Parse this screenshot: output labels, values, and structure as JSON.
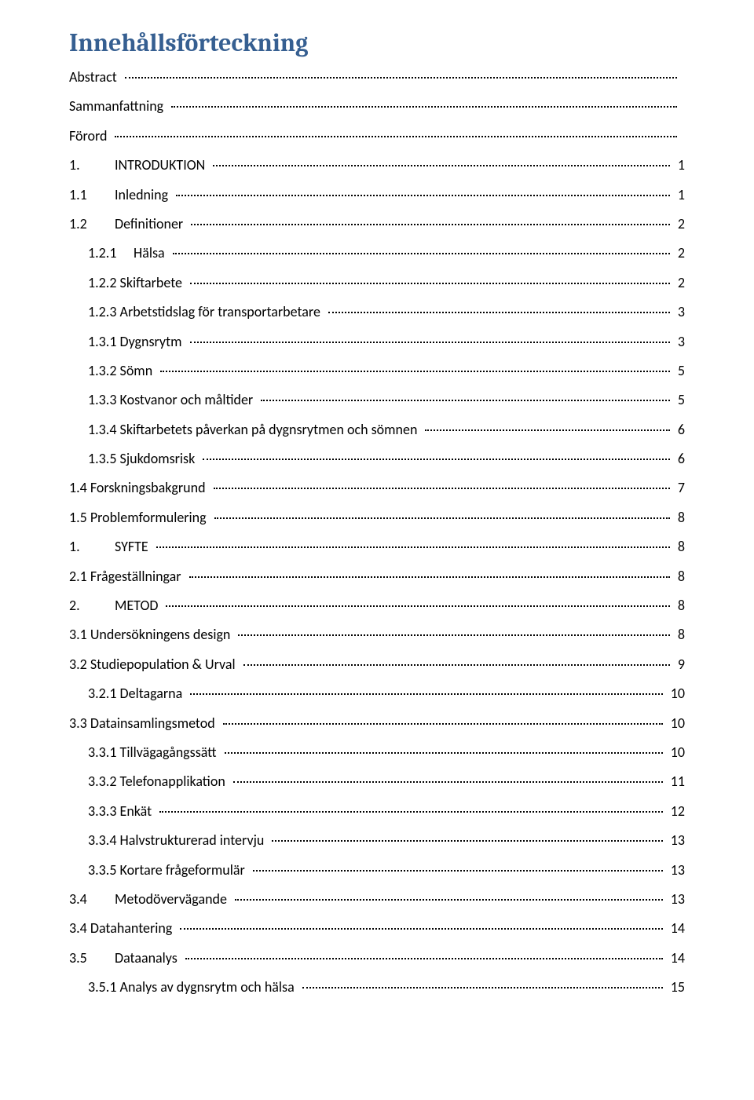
{
  "title": "Innehållsförteckning",
  "title_color": "#365f91",
  "text_color": "#000000",
  "background_color": "#ffffff",
  "font_body": "Calibri",
  "font_heading": "Cambria",
  "title_fontsize_pt": 24,
  "body_fontsize_pt": 13,
  "dot_leader_color": "#000000",
  "entries": [
    {
      "indent": 0,
      "num": "",
      "title": "Abstract",
      "page": ""
    },
    {
      "indent": 0,
      "num": "",
      "title": "Sammanfattning",
      "page": ""
    },
    {
      "indent": 0,
      "num": "",
      "title": "Förord",
      "page": ""
    },
    {
      "indent": 0,
      "num": "1.",
      "title": "INTRODUKTION",
      "wide": true,
      "page": "1"
    },
    {
      "indent": 1,
      "num": "1.1",
      "title": "Inledning",
      "wide": true,
      "page": "1"
    },
    {
      "indent": 1,
      "num": "1.2",
      "title": "Definitioner",
      "wide": true,
      "page": "2"
    },
    {
      "indent": 2,
      "num": "1.2.1",
      "title": "Hälsa",
      "wide": true,
      "page": "2"
    },
    {
      "indent": 2,
      "num": "1.2.2",
      "title": "Skiftarbete",
      "page": "2"
    },
    {
      "indent": 2,
      "num": "1.2.3",
      "title": "Arbetstidslag för transportarbetare",
      "page": "3"
    },
    {
      "indent": 2,
      "num": "1.3.1",
      "title": "Dygnsrytm",
      "page": "3"
    },
    {
      "indent": 2,
      "num": "1.3.2",
      "title": "Sömn",
      "page": "5"
    },
    {
      "indent": 2,
      "num": "1.3.3",
      "title": "Kostvanor och måltider",
      "page": "5"
    },
    {
      "indent": 2,
      "num": "1.3.4",
      "title": "Skiftarbetets påverkan på dygnsrytmen och sömnen",
      "page": "6"
    },
    {
      "indent": 2,
      "num": "1.3.5",
      "title": "Sjukdomsrisk",
      "page": "6"
    },
    {
      "indent": 1,
      "num": "1.4",
      "title": "Forskningsbakgrund",
      "page": "7"
    },
    {
      "indent": 1,
      "num": "1.5",
      "title": "Problemformulering",
      "page": "8"
    },
    {
      "indent": 0,
      "num": "1.",
      "title": "SYFTE",
      "wide": true,
      "page": "8"
    },
    {
      "indent": 1,
      "num": "2.1",
      "title": "Frågeställningar",
      "page": "8"
    },
    {
      "indent": 0,
      "num": "2.",
      "title": "METOD",
      "wide": true,
      "page": "8"
    },
    {
      "indent": 1,
      "num": "3.1",
      "title": "Undersökningens design",
      "page": "8"
    },
    {
      "indent": 1,
      "num": "3.2",
      "title": "Studiepopulation & Urval",
      "page": "9"
    },
    {
      "indent": 2,
      "num": "3.2.1",
      "title": "Deltagarna",
      "page": "10"
    },
    {
      "indent": 1,
      "num": "3.3",
      "title": "Datainsamlingsmetod",
      "wide": false,
      "page": "10"
    },
    {
      "indent": 2,
      "num": "3.3.1",
      "title": "Tillvägagångssätt",
      "page": "10"
    },
    {
      "indent": 2,
      "num": "3.3.2",
      "title": "Telefonapplikation",
      "page": "11"
    },
    {
      "indent": 2,
      "num": "3.3.3",
      "title": "Enkät",
      "page": "12"
    },
    {
      "indent": 2,
      "num": "3.3.4",
      "title": "Halvstrukturerad intervju",
      "page": "13"
    },
    {
      "indent": 2,
      "num": "3.3.5",
      "title": "Kortare frågeformulär",
      "page": "13"
    },
    {
      "indent": 1,
      "num": "3.4",
      "title": "Metodövervägande",
      "wide": true,
      "page": "13"
    },
    {
      "indent": 1,
      "num": "3.4",
      "title": "Datahantering",
      "page": "14"
    },
    {
      "indent": 1,
      "num": "3.5",
      "title": "Dataanalys",
      "wide": true,
      "page": "14"
    },
    {
      "indent": 2,
      "num": "3.5.1",
      "title": "Analys av dygnsrytm och hälsa",
      "page": "15"
    }
  ]
}
